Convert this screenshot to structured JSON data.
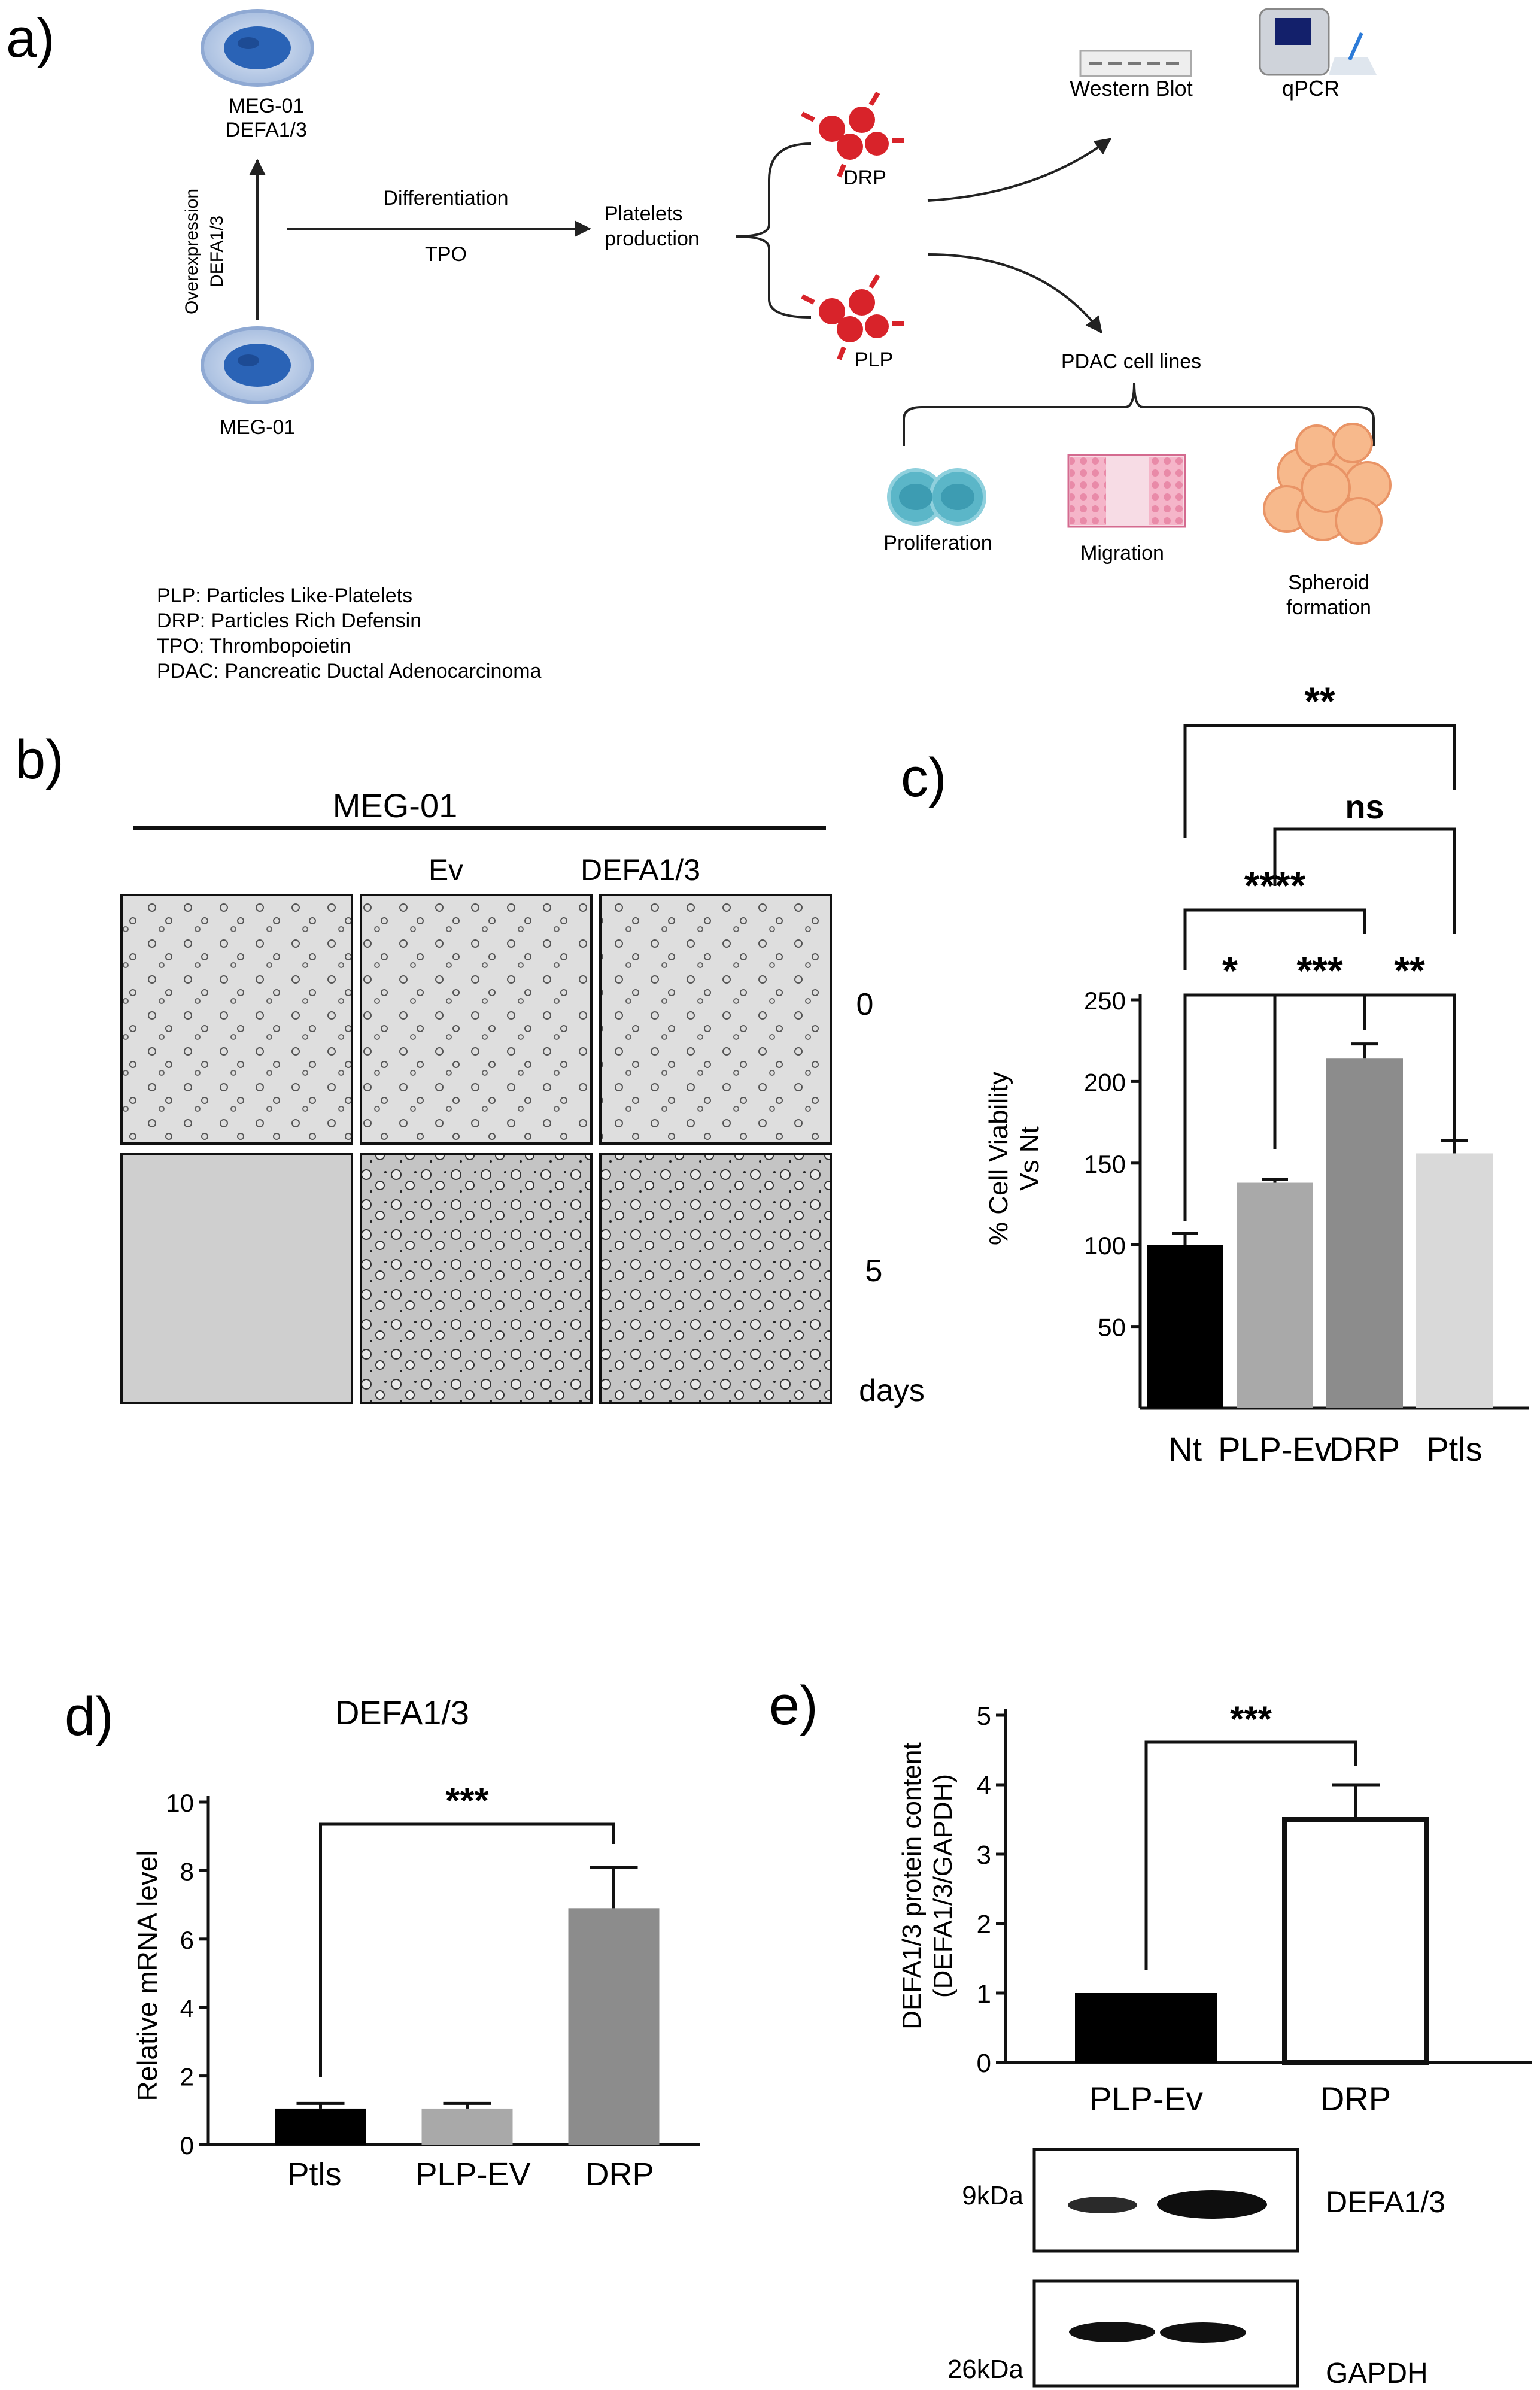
{
  "panel_letters": {
    "a": "a)",
    "b": "b)",
    "c": "c)",
    "d": "d)",
    "e": "e)"
  },
  "panel_a": {
    "meg01_top_line1": "MEG-01",
    "meg01_top_line2": "DEFA1/3",
    "overexpression_line1": "Overexpression",
    "overexpression_line2": "DEFA1/3",
    "meg01_bottom": "MEG-01",
    "differentiation": "Differentiation",
    "tpo": "TPO",
    "platelets_line1": "Platelets",
    "platelets_line2": "production",
    "drp": "DRP",
    "plp": "PLP",
    "western_blot": "Western Blot",
    "qpcr": "qPCR",
    "pdac_cell_lines": "PDAC cell lines",
    "proliferation": "Proliferation",
    "migration": "Migration",
    "spheroid_line1": "Spheroid",
    "spheroid_line2": "formation",
    "legend": [
      "PLP: Particles Like-Platelets",
      "DRP: Particles Rich Defensin",
      "TPO: Thrombopoietin",
      "PDAC: Pancreatic Ductal Adenocarcinoma"
    ]
  },
  "panel_b": {
    "header": "MEG-01",
    "col_ev": "Ev",
    "col_defa": "DEFA1/3",
    "row_0": "0",
    "row_5": "5",
    "days": "days"
  },
  "colors": {
    "cell_blue": "#2a63b6",
    "cell_halo": "#a9bfe0",
    "platelet_red": "#d8232a",
    "bar_black": "#000000",
    "bar_lightgray": "#a9a9a9",
    "bar_darkgray": "#8c8c8c",
    "bar_palegray": "#d9d9d9",
    "proliferation_teal": "#5bb6c8",
    "migration_pink": "#f0a4bd",
    "spheroid_orange": "#f7b98c"
  },
  "chart_data": [
    {
      "panel": "c",
      "type": "bar",
      "categories": [
        "Nt",
        "PLP-Ev",
        "DRP",
        "Ptls"
      ],
      "values": [
        100,
        138,
        214,
        156
      ],
      "errors": [
        7,
        2,
        9,
        8
      ],
      "ylabel": "% Cell Viability\nVs Nt",
      "ylabel_line1": "% Cell Viability",
      "ylabel_line2": "Vs Nt",
      "ylim": [
        0,
        250
      ],
      "yticks": [
        "50",
        "100",
        "150",
        "200",
        "250"
      ],
      "colors": [
        "#000000",
        "#a9a9a9",
        "#8c8c8c",
        "#d9d9d9"
      ],
      "significance": [
        {
          "from": 0,
          "to": 3,
          "label": "**"
        },
        {
          "from": 1,
          "to": 3,
          "label": "ns"
        },
        {
          "from": 0,
          "to": 2,
          "label": "****"
        },
        {
          "from": 0,
          "to": 1,
          "label": "*"
        },
        {
          "from": 1,
          "to": 2,
          "label": "***"
        },
        {
          "from": 2,
          "to": 3,
          "label": "**"
        }
      ]
    },
    {
      "panel": "d",
      "type": "bar",
      "title": "DEFA1/3",
      "categories": [
        "Ptls",
        "PLP-EV",
        "DRP"
      ],
      "values": [
        1.05,
        1.05,
        6.9
      ],
      "errors": [
        0.15,
        0.15,
        1.2
      ],
      "ylabel": "Relative mRNA level",
      "ylim": [
        0,
        10
      ],
      "yticks": [
        "0",
        "2",
        "4",
        "6",
        "8",
        "10"
      ],
      "colors": [
        "#000000",
        "#a9a9a9",
        "#8c8c8c"
      ],
      "significance": [
        {
          "from": 0,
          "to": 2,
          "label": "***"
        }
      ]
    },
    {
      "panel": "e",
      "type": "bar",
      "categories": [
        "PLP-Ev",
        "DRP"
      ],
      "values": [
        1.0,
        3.5
      ],
      "errors": [
        0,
        0.5
      ],
      "ylabel_line1": "DEFA1/3 protein content",
      "ylabel_line2": "(DEFA1/3/GAPDH)",
      "ylim": [
        0,
        5
      ],
      "yticks": [
        "0",
        "1",
        "2",
        "3",
        "4",
        "5"
      ],
      "colors": [
        "#000000",
        "#ffffff"
      ],
      "significance": [
        {
          "from": 0,
          "to": 1,
          "label": "***"
        }
      ]
    }
  ],
  "blot": {
    "row1_size": "9kDa",
    "row1_label": "DEFA1/3",
    "row2_size": "26kDa",
    "row2_label": "GAPDH"
  }
}
